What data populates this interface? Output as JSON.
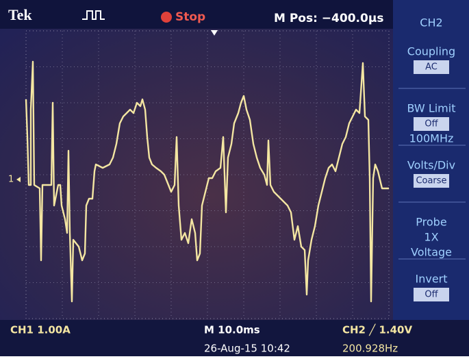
{
  "header": {
    "brand": "Tek",
    "status": "Stop",
    "position": "M Pos: −400.0µs"
  },
  "menu": {
    "channel": "CH2",
    "items": [
      {
        "lines": [
          "Coupling"
        ],
        "value": "AC"
      },
      {
        "lines": [
          "BW Limit"
        ],
        "value": "Off",
        "extra": "100MHz"
      },
      {
        "lines": [
          "Volts/Div"
        ],
        "value": "Coarse"
      },
      {
        "lines": [
          "Probe",
          "1X",
          "Voltage"
        ]
      },
      {
        "lines": [
          "Invert"
        ],
        "value": "Off"
      }
    ]
  },
  "marker": "1",
  "footer": {
    "ch1": "CH1  1.00A",
    "timebase": "M 10.0ms",
    "date": "26-Aug-15 10:42",
    "trigger": "CH2 ╱ 1.40V",
    "frequency": "200.928Hz"
  }
}
